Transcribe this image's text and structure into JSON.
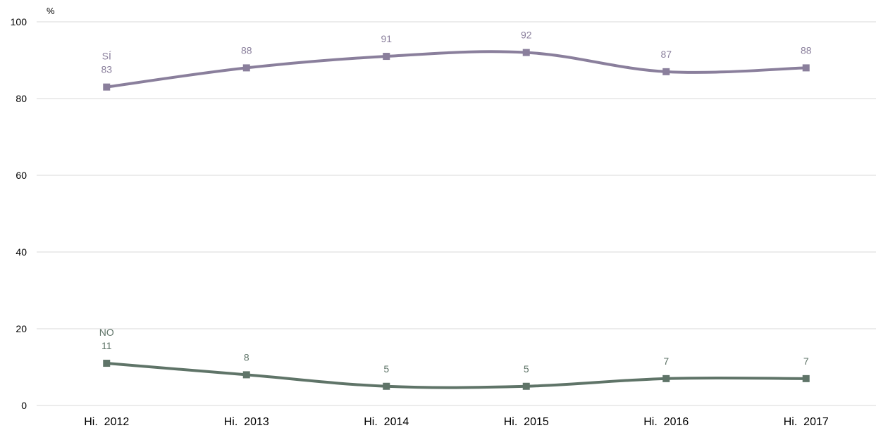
{
  "chart_data": {
    "type": "line",
    "ylabel": "%",
    "ylim": [
      0,
      100
    ],
    "yticks": [
      "0",
      "20",
      "40",
      "60",
      "80",
      "100"
    ],
    "grid": true,
    "categories": [
      "Hi.  2012",
      "Hi.  2013",
      "Hi.  2014",
      "Hi.  2015",
      "Hi.  2016",
      "Hi.  2017"
    ],
    "series": [
      {
        "name": "SÍ",
        "color": "#8a7f9c",
        "values": [
          83,
          88,
          91,
          92,
          87,
          88
        ]
      },
      {
        "name": "NO",
        "color": "#5f7468",
        "values": [
          11,
          8,
          5,
          5,
          7,
          7
        ]
      }
    ]
  }
}
